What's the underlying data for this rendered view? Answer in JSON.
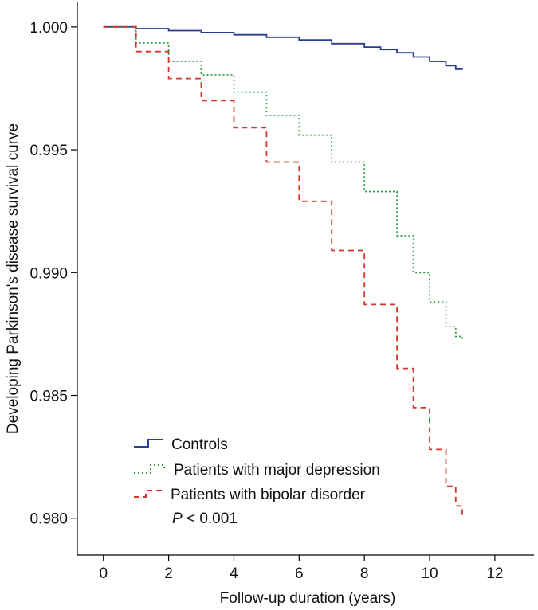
{
  "chart_data": {
    "type": "line",
    "title": "",
    "xlabel": "Follow-up duration (years)",
    "ylabel": "Developing Parkinson's disease survival curve",
    "xlim": [
      -0.8,
      13.2
    ],
    "ylim": [
      0.9785,
      1.001
    ],
    "x_ticks": [
      0,
      2,
      4,
      6,
      8,
      10,
      12
    ],
    "x_tick_labels": [
      "0",
      "2",
      "4",
      "6",
      "8",
      "10",
      "12"
    ],
    "y_ticks": [
      0.98,
      0.985,
      0.99,
      0.995,
      1.0
    ],
    "y_tick_labels": [
      "0.980",
      "0.985",
      "0.990",
      "0.995",
      "1.000"
    ],
    "grid": false,
    "legend_position": "bottom-left",
    "annotation": {
      "italic": "P",
      "rest": " < 0.001"
    },
    "series": [
      {
        "name": "Controls",
        "color": "#2b3d8f",
        "style": "solid",
        "x": [
          0,
          1,
          2,
          3,
          4,
          5,
          6,
          7,
          8,
          8.5,
          9,
          9.5,
          10,
          10.5,
          10.8,
          11.0
        ],
        "y": [
          1.0,
          0.99993,
          0.99985,
          0.99977,
          0.99968,
          0.99958,
          0.99947,
          0.99932,
          0.99918,
          0.99908,
          0.99895,
          0.99878,
          0.9986,
          0.99843,
          0.99828,
          0.99826
        ]
      },
      {
        "name": "Patients with major depression",
        "color": "#2e9a47",
        "style": "dotted",
        "x": [
          0,
          1,
          2,
          3,
          4,
          5,
          6,
          7,
          8,
          9,
          9.5,
          10,
          10.5,
          10.8,
          11.0
        ],
        "y": [
          1.0,
          0.99935,
          0.9986,
          0.99805,
          0.99735,
          0.9964,
          0.9956,
          0.9945,
          0.9933,
          0.9915,
          0.99,
          0.9888,
          0.9878,
          0.9874,
          0.9873
        ]
      },
      {
        "name": "Patients with bipolar disorder",
        "color": "#d9342b",
        "style": "dashed",
        "x": [
          0,
          1,
          2,
          3,
          4,
          5,
          6,
          7,
          8,
          9,
          9.5,
          10,
          10.5,
          10.8,
          11.0
        ],
        "y": [
          1.0,
          0.999,
          0.9979,
          0.997,
          0.9959,
          0.9945,
          0.9929,
          0.9909,
          0.9887,
          0.9861,
          0.9845,
          0.9828,
          0.9813,
          0.9805,
          0.98
        ]
      }
    ]
  }
}
